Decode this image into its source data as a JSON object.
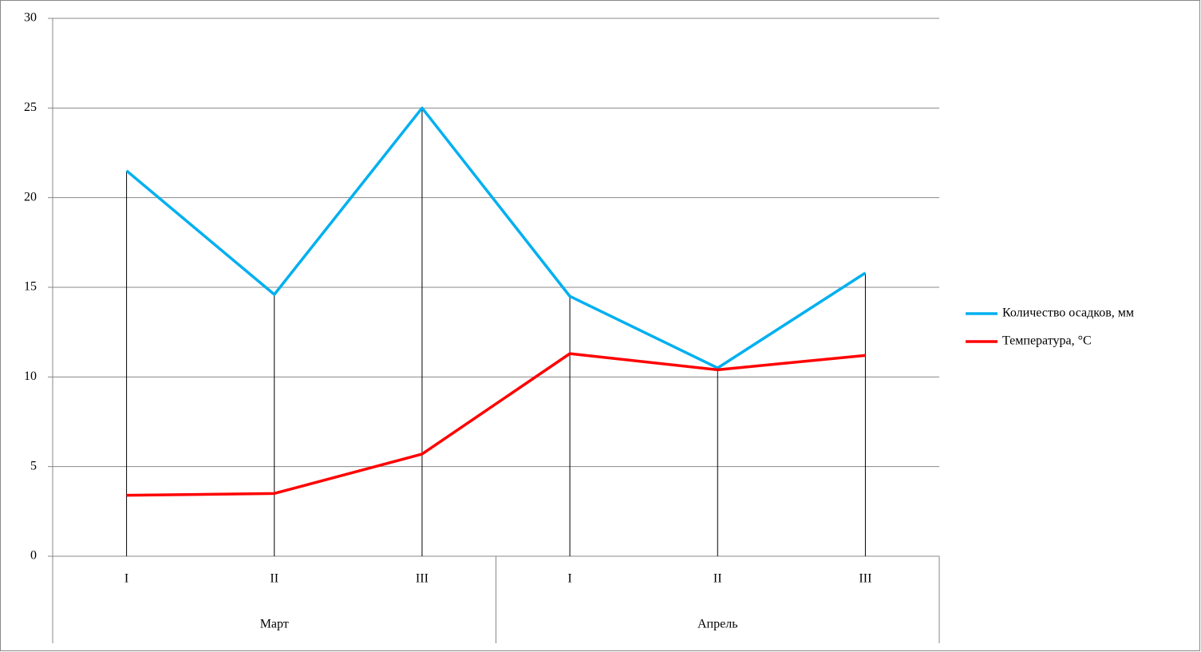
{
  "chart_data": {
    "type": "line",
    "categories": [
      "I",
      "II",
      "III",
      "I",
      "II",
      "III"
    ],
    "groups": [
      "Март",
      "Апрель"
    ],
    "series": [
      {
        "name": "Количество осадков, мм",
        "color": "#00b0f0",
        "values": [
          21.5,
          14.6,
          25,
          14.5,
          10.5,
          15.8
        ]
      },
      {
        "name": "Температура, °C",
        "color": "#ff0000",
        "values": [
          3.4,
          3.5,
          5.7,
          11.3,
          10.4,
          11.2
        ]
      }
    ],
    "ylim": [
      0,
      30
    ],
    "yticks": [
      0,
      5,
      10,
      15,
      20,
      25,
      30
    ],
    "grid": true,
    "drop_lines": true,
    "legend": "right"
  }
}
